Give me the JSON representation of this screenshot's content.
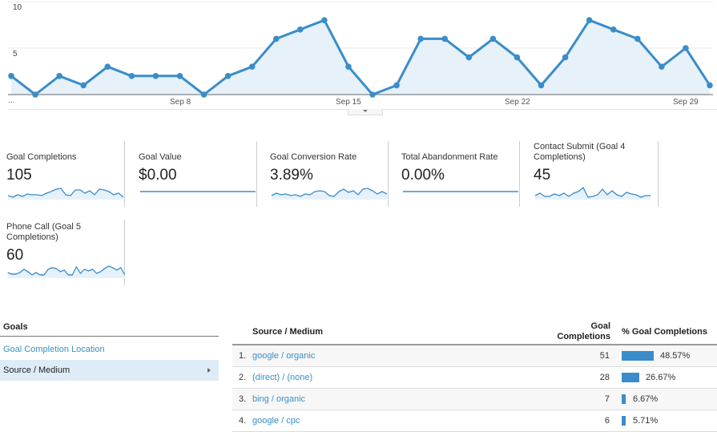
{
  "chart_data": {
    "type": "area",
    "title": "",
    "xlabel": "",
    "ylabel": "Goal Completions",
    "ylim": [
      0,
      10
    ],
    "yticks": [
      5,
      10
    ],
    "xtick_labels": [
      "...",
      "Sep 8",
      "Sep 15",
      "Sep 22",
      "Sep 29"
    ],
    "grid": true,
    "series": [
      {
        "name": "Goal Completions",
        "values": [
          2,
          0,
          2,
          1,
          3,
          2,
          2,
          2,
          0,
          2,
          3,
          6,
          7,
          8,
          3,
          0,
          1,
          6,
          6,
          4,
          6,
          4,
          1,
          4,
          8,
          7,
          6,
          3,
          5,
          1
        ],
        "color": "#3a8dc9"
      }
    ]
  },
  "chart": {
    "y_tick_10": "10",
    "y_tick_5": "5",
    "x_ellipsis": "...",
    "x_sep8": "Sep 8",
    "x_sep15": "Sep 15",
    "x_sep22": "Sep 22",
    "x_sep29": "Sep 29"
  },
  "metrics": [
    {
      "label": "Goal Completions",
      "value": "105"
    },
    {
      "label": "Goal Value",
      "value": "$0.00"
    },
    {
      "label": "Goal Conversion Rate",
      "value": "3.89%"
    },
    {
      "label": "Total Abandonment Rate",
      "value": "0.00%"
    },
    {
      "label": "Contact Submit (Goal 4 Completions)",
      "value": "45"
    },
    {
      "label": "Phone Call (Goal 5 Completions)",
      "value": "60"
    }
  ],
  "goals_panel": {
    "title": "Goals",
    "link": "Goal Completion Location",
    "selected": "Source / Medium"
  },
  "table": {
    "headers": {
      "source": "Source / Medium",
      "completions": "Goal Completions",
      "pct": "% Goal Completions"
    },
    "rows": [
      {
        "idx": "1.",
        "source": "google / organic",
        "completions": "51",
        "pct": "48.57%"
      },
      {
        "idx": "2.",
        "source": "(direct) / (none)",
        "completions": "28",
        "pct": "26.67%"
      },
      {
        "idx": "3.",
        "source": "bing / organic",
        "completions": "7",
        "pct": "6.67%"
      },
      {
        "idx": "4.",
        "source": "google / cpc",
        "completions": "6",
        "pct": "5.71%"
      }
    ]
  },
  "colors": {
    "line": "#3a8dc9",
    "fill": "#e6f1fa",
    "link": "#3a8fc6",
    "selected_bg": "#ddecf6",
    "bar": "#3b8ccb"
  }
}
